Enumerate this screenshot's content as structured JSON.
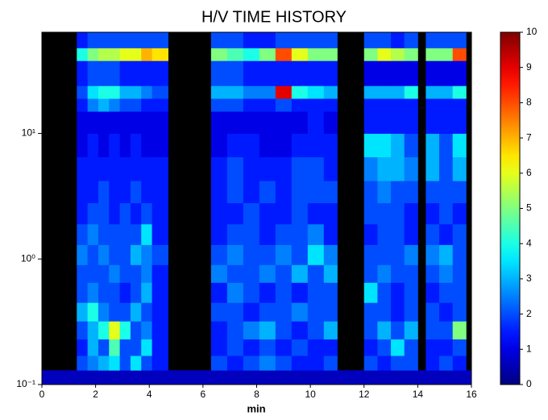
{
  "chart_data": {
    "type": "heatmap",
    "title": "H/V TIME HISTORY",
    "xlabel": "min",
    "xlim": [
      0,
      16
    ],
    "xticks": [
      0,
      2,
      4,
      6,
      8,
      10,
      12,
      14,
      16
    ],
    "ylim": [
      0.1,
      64
    ],
    "log_y": true,
    "yticks": [
      {
        "value": 0.1,
        "label": "10⁻¹"
      },
      {
        "value": 1,
        "label": "10⁰"
      },
      {
        "value": 10,
        "label": "10¹"
      }
    ],
    "colormap": "jet",
    "background": "#000000",
    "colorbar": {
      "lim": [
        0,
        10
      ],
      "ticks": [
        0,
        1,
        2,
        3,
        4,
        5,
        6,
        7,
        8,
        9,
        10
      ]
    },
    "xbins": [
      0,
      1.3,
      1.7,
      2.1,
      2.5,
      2.9,
      3.3,
      3.7,
      4.1,
      4.7,
      6.3,
      6.9,
      7.5,
      8.1,
      8.7,
      9.3,
      9.9,
      10.5,
      11.0,
      12,
      12.5,
      13,
      13.5,
      14,
      14.3,
      14.8,
      15.3,
      15.8,
      16
    ],
    "ybins": [
      0.1,
      0.13,
      0.17,
      0.23,
      0.32,
      0.45,
      0.65,
      0.9,
      1.3,
      1.9,
      2.8,
      4.2,
      6.5,
      10,
      15,
      19,
      24,
      38,
      48,
      64
    ],
    "values": [
      [
        0.6,
        0.6,
        0.6,
        0.6,
        0.6,
        0.6,
        0.6,
        0.6,
        0.6,
        0.6,
        0.6,
        0.6,
        0.6,
        0.6,
        0.6,
        0.6,
        0.6,
        0.6,
        0.6,
        0.6,
        0.6,
        0.6,
        0.6,
        0.6,
        0.6,
        0.6,
        0.6,
        0.6
      ],
      [
        null,
        2,
        2.5,
        3,
        3.5,
        2,
        3.5,
        2,
        1.5,
        null,
        2,
        1.5,
        2,
        2.5,
        2,
        1.5,
        1.5,
        2,
        null,
        2,
        1.5,
        2,
        2,
        null,
        1.5,
        2,
        1.5,
        null
      ],
      [
        null,
        1.5,
        3,
        2,
        4.5,
        2,
        2,
        3.5,
        1.5,
        null,
        1.5,
        2,
        1.5,
        2,
        1.5,
        2,
        1.5,
        1.5,
        null,
        1.5,
        2,
        3.5,
        2,
        null,
        1.5,
        1.5,
        2,
        null
      ],
      [
        null,
        2,
        3,
        4,
        6,
        4,
        2,
        2.5,
        1.5,
        null,
        1.5,
        2,
        2.5,
        3,
        2,
        1.5,
        2,
        3,
        null,
        2,
        3,
        2,
        3,
        null,
        2,
        2,
        5,
        null
      ],
      [
        null,
        3,
        4,
        2.5,
        2,
        2,
        3,
        2,
        1.5,
        null,
        2,
        2,
        1.5,
        2,
        2,
        2.5,
        2,
        2,
        null,
        2,
        2,
        1.5,
        2,
        null,
        2,
        1.5,
        2,
        null
      ],
      [
        null,
        2,
        2.5,
        2,
        2,
        1.5,
        2,
        3,
        1.5,
        null,
        1.5,
        2.5,
        2,
        1.5,
        2,
        1.5,
        2,
        2,
        null,
        3.5,
        2,
        1.5,
        2,
        null,
        1.5,
        2,
        2,
        null
      ],
      [
        null,
        2,
        2,
        2,
        2.5,
        2,
        2,
        2.5,
        1.5,
        null,
        2.5,
        2,
        2,
        2.5,
        2,
        3,
        2,
        3,
        null,
        2,
        2.5,
        2,
        2,
        null,
        2,
        2.5,
        2,
        null
      ],
      [
        null,
        2.5,
        2,
        2.5,
        2,
        2,
        3,
        2.5,
        2,
        null,
        2,
        2.5,
        2,
        2,
        2.5,
        2,
        3.5,
        2.5,
        null,
        2,
        2,
        2,
        2.5,
        null,
        2.5,
        3,
        2,
        null
      ],
      [
        null,
        2,
        2.5,
        2,
        2,
        2,
        2,
        3.5,
        1.5,
        null,
        1.5,
        2,
        2,
        1.5,
        2,
        2,
        2.5,
        1.5,
        null,
        1.5,
        2,
        2,
        1.5,
        null,
        2,
        1.5,
        2,
        null
      ],
      [
        null,
        1.5,
        2,
        2,
        1.5,
        2,
        1.5,
        2,
        1.5,
        null,
        1.5,
        1.5,
        2,
        1.5,
        1.5,
        2,
        1.5,
        1.5,
        null,
        2,
        2,
        2,
        1.5,
        null,
        1.5,
        2,
        1.5,
        null
      ],
      [
        null,
        1.5,
        1.5,
        2,
        1.5,
        1.5,
        2,
        1.5,
        1.5,
        null,
        1.5,
        2,
        1.5,
        2,
        1.5,
        2,
        2,
        2,
        null,
        2,
        2.5,
        2,
        2,
        null,
        2,
        2,
        2,
        null
      ],
      [
        null,
        1.5,
        1.5,
        1.5,
        1.5,
        1.5,
        1.5,
        1.5,
        1.5,
        null,
        1.5,
        2,
        1.5,
        1.5,
        1.5,
        2,
        2,
        1.5,
        null,
        2.5,
        3,
        3,
        2.5,
        null,
        3,
        2,
        3,
        null
      ],
      [
        null,
        1,
        1.5,
        1,
        1.5,
        1,
        1.5,
        1,
        1,
        null,
        1,
        1.5,
        1.5,
        1,
        1,
        1.5,
        1.5,
        1.5,
        null,
        3.5,
        3.5,
        3,
        2,
        null,
        3,
        2,
        3.5,
        null
      ],
      [
        null,
        1,
        1,
        1,
        1,
        1,
        1,
        1,
        1,
        null,
        1,
        1,
        1,
        1,
        1,
        1,
        1.5,
        1,
        null,
        1.5,
        1.5,
        1.5,
        1.5,
        null,
        1.5,
        1.5,
        1.5,
        null
      ],
      [
        null,
        1.5,
        2.5,
        3,
        2.5,
        2,
        2,
        1.5,
        1.5,
        null,
        2,
        2,
        1.5,
        1.5,
        2,
        1.5,
        1.5,
        1.5,
        null,
        1.5,
        1.5,
        1.5,
        1.5,
        null,
        1.5,
        1.5,
        1.5,
        null
      ],
      [
        null,
        2,
        3.5,
        4,
        4,
        3,
        3,
        2.5,
        2,
        null,
        3,
        3,
        2.5,
        2.5,
        9,
        4,
        3.5,
        3,
        null,
        3,
        3,
        3,
        4,
        null,
        3,
        3,
        4,
        null
      ],
      [
        null,
        1.5,
        2,
        2,
        2,
        1.5,
        1.5,
        1.5,
        1.5,
        null,
        2,
        2,
        1.5,
        1.5,
        1.5,
        1.5,
        1.5,
        1.5,
        null,
        1,
        1,
        1,
        1,
        null,
        1,
        1,
        1,
        null
      ],
      [
        null,
        4,
        5,
        5.5,
        5.5,
        6,
        6,
        7,
        6.5,
        null,
        5,
        4.5,
        4,
        5,
        8,
        6,
        5,
        5,
        null,
        5,
        6,
        5.5,
        5,
        null,
        5,
        5,
        8,
        null
      ],
      [
        null,
        1.5,
        2,
        2,
        2,
        2,
        2,
        2,
        2,
        null,
        2,
        2,
        1.5,
        1.5,
        2,
        2,
        2,
        2,
        null,
        2,
        2,
        1.5,
        2,
        null,
        2,
        2,
        2,
        null
      ]
    ]
  }
}
